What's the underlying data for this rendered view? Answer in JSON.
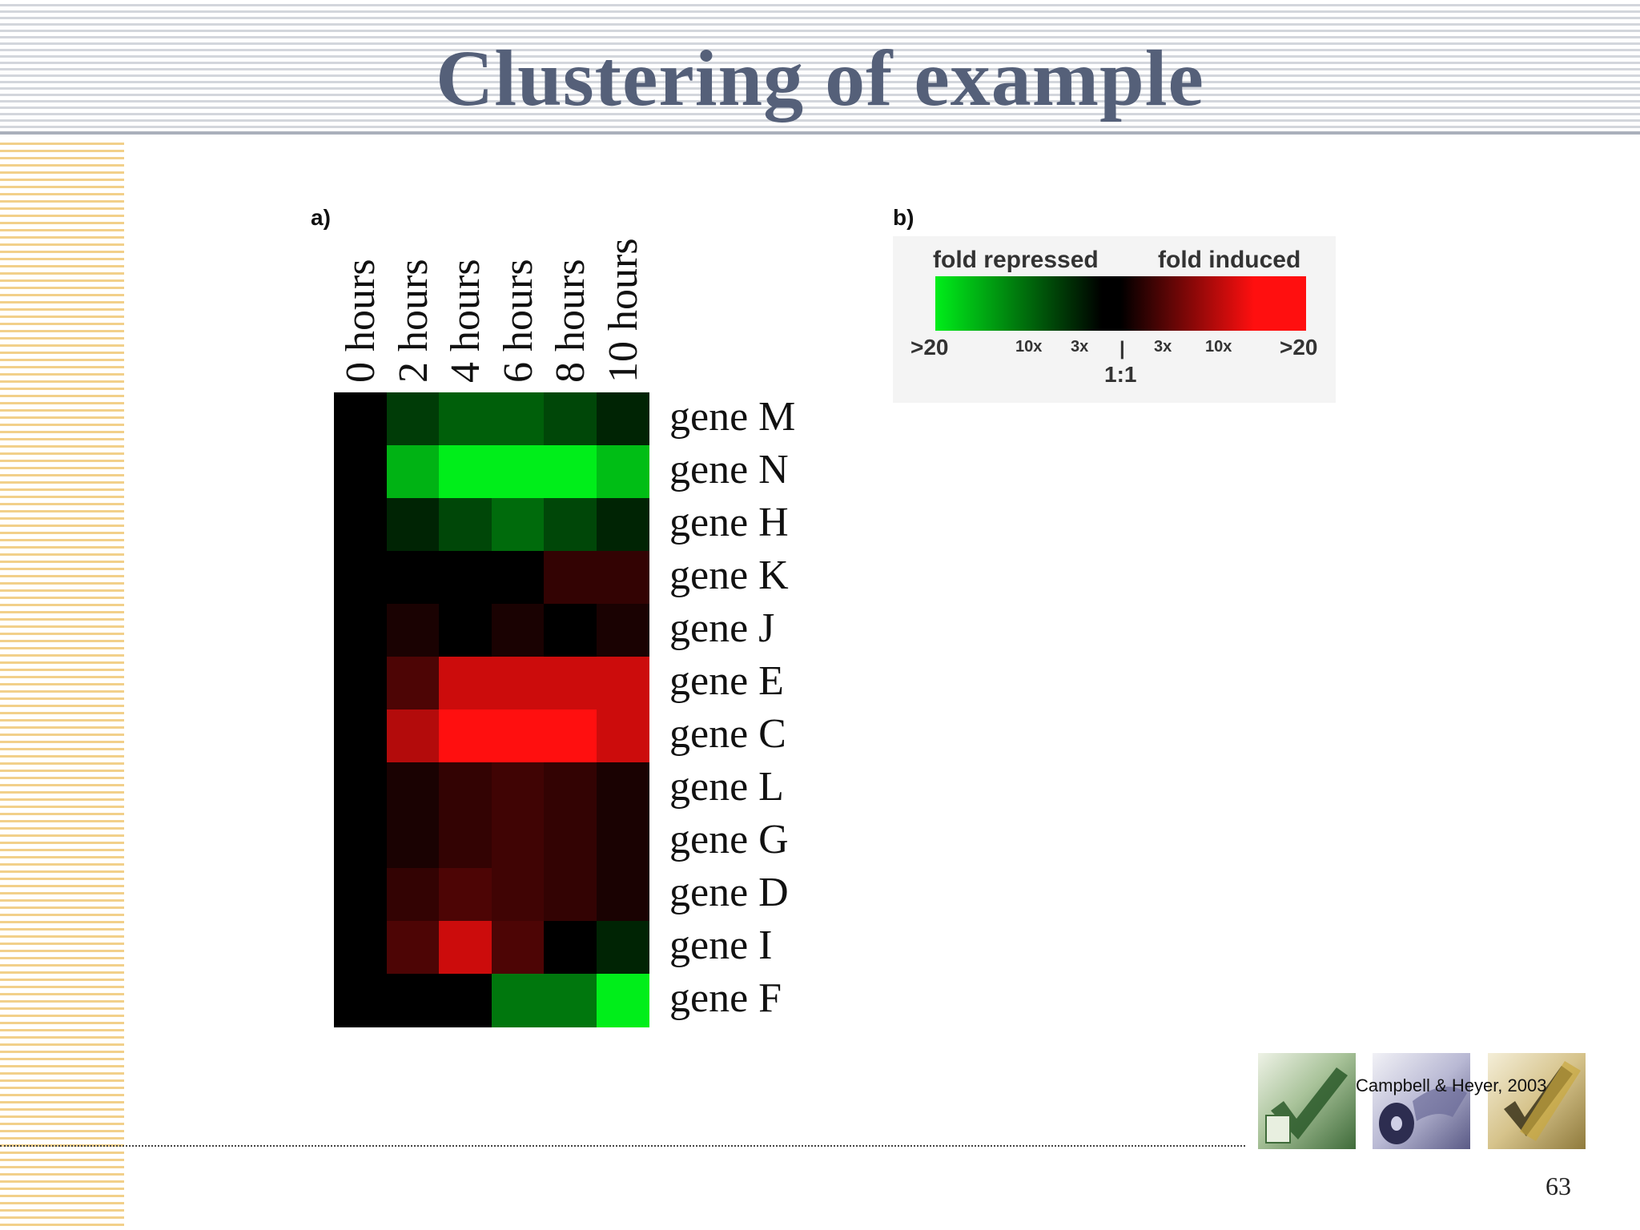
{
  "slide": {
    "title": "Clustering of example",
    "page_number": "63",
    "credit": "Campbell & Heyer, 2003"
  },
  "panel_a_label": "a)",
  "panel_b_label": "b)",
  "chart_data": [
    {
      "type": "heatmap",
      "columns": [
        "0 hours",
        "2 hours",
        "4 hours",
        "6 hours",
        "8 hours",
        "10 hours"
      ],
      "rows": [
        "gene M",
        "gene N",
        "gene H",
        "gene K",
        "gene J",
        "gene E",
        "gene C",
        "gene L",
        "gene G",
        "gene D",
        "gene I",
        "gene F"
      ],
      "values": [
        [
          0,
          -5,
          -8,
          -8,
          -6,
          -3
        ],
        [
          0,
          -15,
          -20,
          -20,
          -20,
          -16
        ],
        [
          0,
          -3,
          -6,
          -9,
          -6,
          -3
        ],
        [
          0,
          0,
          0,
          0,
          4,
          4
        ],
        [
          0,
          2,
          0,
          2,
          0,
          2
        ],
        [
          0,
          6,
          16,
          16,
          16,
          16
        ],
        [
          0,
          14,
          20,
          20,
          20,
          16
        ],
        [
          0,
          2,
          4,
          5,
          4,
          2
        ],
        [
          0,
          2,
          4,
          5,
          4,
          2
        ],
        [
          0,
          4,
          6,
          5,
          4,
          2
        ],
        [
          0,
          6,
          16,
          6,
          0,
          -3
        ],
        [
          0,
          0,
          0,
          -10,
          -10,
          -20
        ]
      ],
      "value_scale": "signed fold change (negative = repressed, positive = induced)"
    },
    {
      "type": "legend",
      "left_label": "fold repressed",
      "right_label": "fold induced",
      "ticks": [
        ">20",
        "10x",
        "3x",
        "|",
        "3x",
        "10x",
        ">20"
      ],
      "center_label": "1:1",
      "colors": {
        "repressed": "#00ee1a",
        "neutral": "#000000",
        "induced": "#ff0f0f"
      }
    }
  ]
}
